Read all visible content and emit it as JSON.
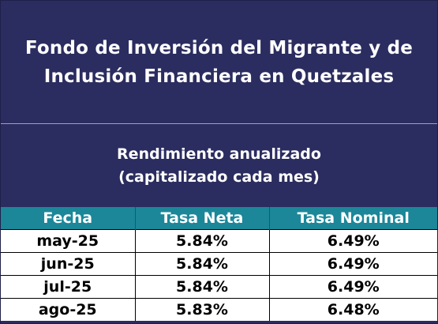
{
  "title": {
    "line1": "Fondo de Inversión del Migrante y de",
    "line2": "Inclusión Financiera en Quetzales"
  },
  "subtitle": {
    "line1": "Rendimiento anualizado",
    "line2": "(capitalizado cada mes)"
  },
  "table": {
    "headers": [
      "Fecha",
      "Tasa Neta",
      "Tasa Nominal"
    ],
    "rows": [
      [
        "may-25",
        "5.84%",
        "6.49%"
      ],
      [
        "jun-25",
        "5.84%",
        "6.49%"
      ],
      [
        "jul-25",
        "5.84%",
        "6.49%"
      ],
      [
        "ago-25",
        "5.83%",
        "6.48%"
      ]
    ]
  },
  "colors": {
    "navy": "#2b2c5f",
    "teal": "#1b8799"
  }
}
